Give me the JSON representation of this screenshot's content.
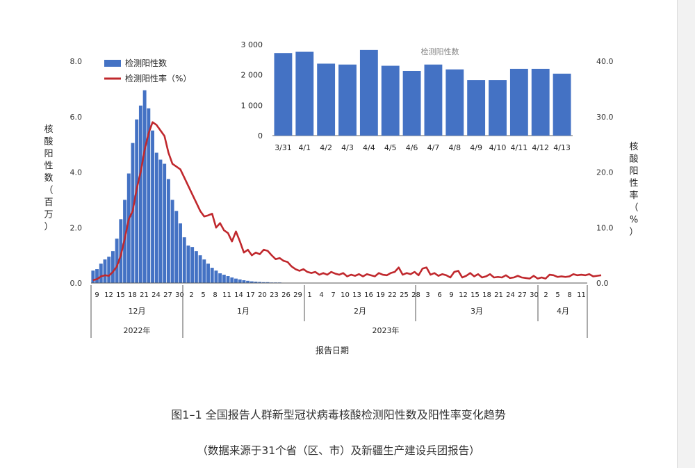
{
  "caption": {
    "title": "图1–1 全国报告人群新型冠状病毒核酸检测阳性数及阳性率变化趋势",
    "note": "（数据来源于31个省（区、市）及新疆生产建设兵团报告）"
  },
  "colors": {
    "bar": "#4472C4",
    "line": "#C0282D",
    "sidebar": "#f2f2f2"
  },
  "chart_data": [
    {
      "type": "bar+line",
      "title": "",
      "xlabel": "报告日期",
      "ylabel_left": "核酸阳性数（百万）",
      "ylabel_right": "核酸阳性率（%）",
      "y_left_ticks": [
        "0.0",
        "2.0",
        "4.0",
        "6.0",
        "8.0"
      ],
      "y_right_ticks": [
        "0.0",
        "10.0",
        "20.0",
        "30.0",
        "40.0"
      ],
      "ylim_left": [
        0,
        8
      ],
      "ylim_right": [
        0,
        40
      ],
      "legend": [
        "检测阳性数",
        "检测阳性率（%）"
      ],
      "legend_position": "top-left",
      "start_label": "2022-12-09",
      "x_tick_labels": [
        "9",
        "12",
        "15",
        "18",
        "21",
        "24",
        "27",
        "30",
        "2",
        "5",
        "8",
        "11",
        "14",
        "17",
        "20",
        "23",
        "26",
        "29",
        "1",
        "4",
        "7",
        "10",
        "13",
        "16",
        "19",
        "22",
        "25",
        "28",
        "3",
        "6",
        "9",
        "12",
        "15",
        "18",
        "21",
        "24",
        "27",
        "30",
        "2",
        "5",
        "8",
        "11"
      ],
      "month_labels": [
        "12月",
        "1月",
        "2月",
        "3月",
        "4月"
      ],
      "year_labels": [
        "2022年",
        "2023年"
      ],
      "series": [
        {
          "name": "检测阳性数",
          "axis": "left",
          "values": [
            0.45,
            0.5,
            0.7,
            0.85,
            0.95,
            1.15,
            1.6,
            2.3,
            3.0,
            3.95,
            5.05,
            5.9,
            6.4,
            6.95,
            6.3,
            5.5,
            4.7,
            4.45,
            4.3,
            3.75,
            3.0,
            2.6,
            2.15,
            1.65,
            1.35,
            1.3,
            1.15,
            1.0,
            0.85,
            0.7,
            0.55,
            0.45,
            0.35,
            0.3,
            0.25,
            0.2,
            0.16,
            0.13,
            0.1,
            0.08,
            0.06,
            0.05,
            0.04,
            0.03,
            0.03,
            0.02,
            0.02,
            0.02,
            0.01,
            0.01,
            0.01,
            0.01,
            0.01,
            0.01,
            0.01,
            0.01,
            0.01,
            0.01,
            0.01,
            0.01,
            0.01,
            0.01,
            0.01,
            0.01,
            0.01,
            0.01,
            0.01,
            0.01,
            0.01,
            0.01,
            0.01,
            0.01,
            0.01,
            0.01,
            0.01,
            0.01,
            0.01,
            0.01,
            0.01,
            0.01,
            0.01,
            0.01,
            0.01,
            0.01,
            0.01,
            0.01,
            0.01,
            0.01,
            0.01,
            0.01,
            0.01,
            0.01,
            0.01,
            0.01,
            0.01,
            0.01,
            0.01,
            0.01,
            0.01,
            0.01,
            0.01,
            0.01,
            0.01,
            0.01,
            0.01,
            0.01,
            0.01,
            0.01,
            0.01,
            0.01,
            0.01,
            0.01,
            0.01,
            0.01,
            0.01,
            0.01,
            0.01,
            0.01,
            0.01,
            0.01,
            0.01,
            0.01,
            0.01,
            0.01,
            0.01
          ]
        },
        {
          "name": "检测阳性率（%）",
          "axis": "right",
          "values": [
            0.5,
            0.7,
            1.2,
            1.4,
            1.3,
            2.0,
            3.0,
            5.0,
            8.0,
            11.5,
            13.0,
            17.0,
            20.0,
            24.0,
            27.0,
            29.0,
            28.5,
            27.5,
            26.5,
            23.5,
            21.5,
            21.0,
            20.5,
            19.0,
            17.5,
            16.0,
            14.5,
            13.0,
            12.0,
            12.2,
            12.5,
            10.0,
            10.8,
            9.5,
            9.0,
            7.5,
            9.3,
            7.5,
            5.5,
            6.0,
            5.0,
            5.5,
            5.2,
            6.0,
            5.8,
            5.0,
            4.3,
            4.5,
            4.0,
            3.8,
            3.0,
            2.5,
            2.2,
            2.5,
            2.0,
            1.8,
            2.0,
            1.5,
            1.8,
            1.5,
            2.0,
            1.7,
            1.5,
            1.8,
            1.2,
            1.5,
            1.3,
            1.6,
            1.2,
            1.6,
            1.4,
            1.2,
            1.8,
            1.5,
            1.4,
            1.8,
            2.0,
            2.8,
            1.5,
            1.8,
            1.6,
            2.0,
            1.4,
            2.6,
            2.8,
            1.5,
            1.8,
            1.3,
            1.6,
            1.4,
            1.0,
            2.0,
            2.2,
            1.0,
            1.3,
            1.8,
            1.2,
            1.6,
            1.0,
            1.2,
            1.6,
            1.0,
            1.1,
            1.0,
            1.4,
            0.9,
            1.0,
            1.3,
            1.0,
            0.9,
            0.8,
            1.3,
            0.8,
            1.0,
            0.8,
            1.5,
            1.4,
            1.1,
            1.2,
            1.1,
            1.2,
            1.6,
            1.4,
            1.5,
            1.4,
            1.6,
            1.2,
            1.3,
            1.4
          ]
        }
      ]
    },
    {
      "type": "bar",
      "title": "检测阳性数",
      "categories": [
        "3/31",
        "4/1",
        "4/2",
        "4/3",
        "4/4",
        "4/5",
        "4/6",
        "4/7",
        "4/8",
        "4/9",
        "4/10",
        "4/11",
        "4/12",
        "4/13"
      ],
      "values": [
        2720,
        2760,
        2370,
        2340,
        2820,
        2300,
        2130,
        2340,
        2180,
        1830,
        1830,
        2200,
        2200,
        2040
      ],
      "y_ticks": [
        "0",
        "1 000",
        "2 000",
        "3 000"
      ],
      "ylim": [
        0,
        3000
      ]
    }
  ]
}
